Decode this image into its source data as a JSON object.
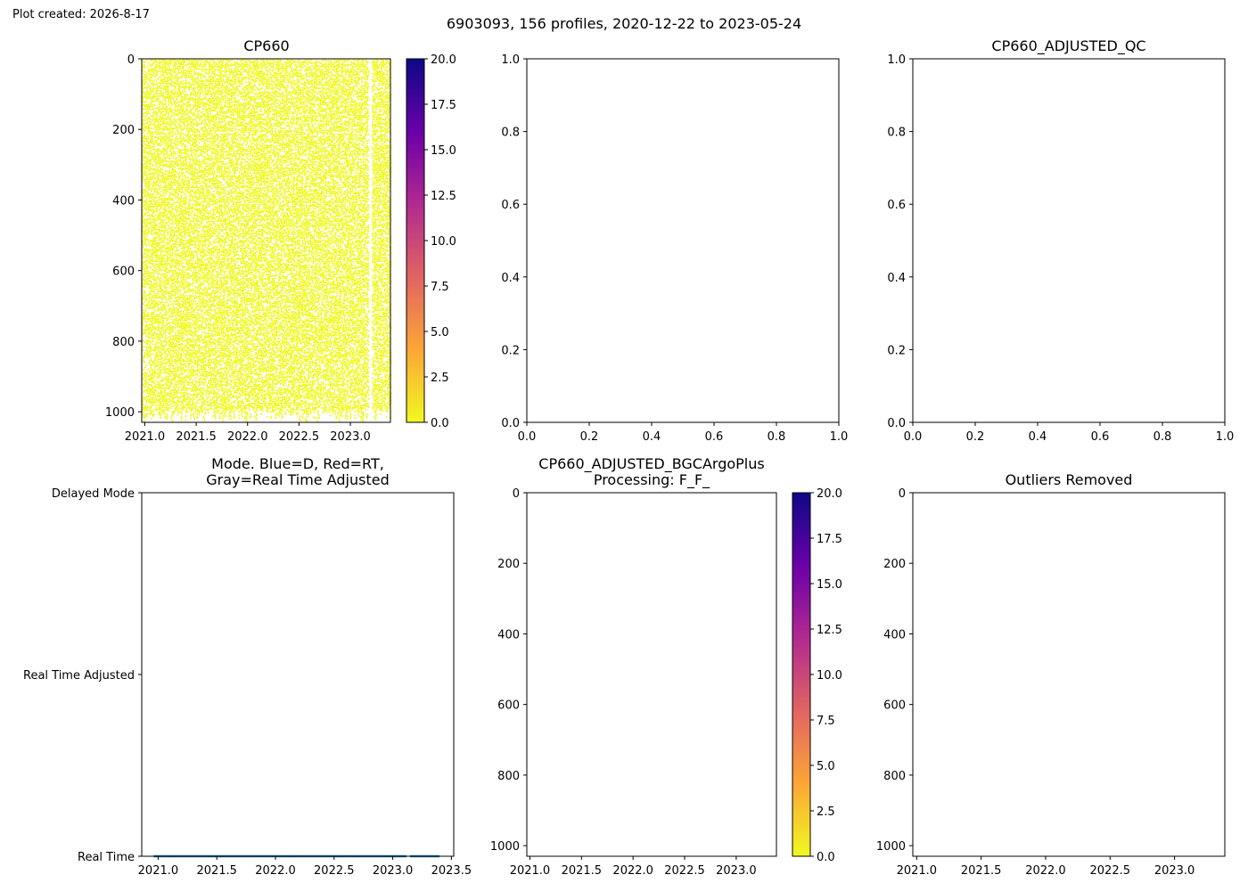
{
  "figure": {
    "created_note": "Plot created: 2026-8-17",
    "suptitle": "6903093, 156 profiles, 2020-12-22 to 2023-05-24"
  },
  "colors": {
    "plasma_r": [
      "#f0f921",
      "#fca636",
      "#e16462",
      "#b12a90",
      "#6a00a8",
      "#0d0887"
    ],
    "scatter_fill": "#f0f921",
    "mode_points": "#1f77b4"
  },
  "chart_data": [
    {
      "id": "cp660",
      "type": "scatter",
      "title": "CP660",
      "xlim": [
        2020.97,
        2023.39
      ],
      "ylim": [
        1030,
        0
      ],
      "xticks": [
        2021.0,
        2021.5,
        2022.0,
        2022.5,
        2023.0
      ],
      "xtick_labels": [
        "2021.0",
        "2021.5",
        "2022.0",
        "2022.5",
        "2023.0"
      ],
      "yticks": [
        0,
        200,
        400,
        600,
        800,
        1000
      ],
      "ytick_labels": [
        "0",
        "200",
        "400",
        "600",
        "800",
        "1000"
      ],
      "profiles": {
        "count": 156,
        "date_range": [
          "2020-12-22",
          "2023-05-24"
        ],
        "depth_range": [
          0,
          1030
        ],
        "value_range": [
          0,
          1
        ],
        "gap": [
          2023.17,
          2023.21
        ]
      },
      "colorbar": {
        "cmap": "plasma_r",
        "range": [
          0,
          20
        ],
        "ticks": [
          0,
          2.5,
          5,
          7.5,
          10,
          12.5,
          15,
          17.5,
          20
        ],
        "tick_labels": [
          "0.0",
          "2.5",
          "5.0",
          "7.5",
          "10.0",
          "12.5",
          "15.0",
          "17.5",
          "20.0"
        ]
      }
    },
    {
      "id": "empty",
      "type": "scatter",
      "title": "",
      "xlim": [
        0,
        1
      ],
      "ylim": [
        0,
        1
      ],
      "xticks": [
        0,
        0.2,
        0.4,
        0.6,
        0.8,
        1.0
      ],
      "xtick_labels": [
        "0.0",
        "0.2",
        "0.4",
        "0.6",
        "0.8",
        "1.0"
      ],
      "yticks": [
        0,
        0.2,
        0.4,
        0.6,
        0.8,
        1.0
      ],
      "ytick_labels": [
        "0.0",
        "0.2",
        "0.4",
        "0.6",
        "0.8",
        "1.0"
      ]
    },
    {
      "id": "adjusted-qc",
      "type": "scatter",
      "title": "CP660_ADJUSTED_QC",
      "xlim": [
        0,
        1
      ],
      "ylim": [
        0,
        1
      ],
      "xticks": [
        0,
        0.2,
        0.4,
        0.6,
        0.8,
        1.0
      ],
      "xtick_labels": [
        "0.0",
        "0.2",
        "0.4",
        "0.6",
        "0.8",
        "1.0"
      ],
      "yticks": [
        0,
        0.2,
        0.4,
        0.6,
        0.8,
        1.0
      ],
      "ytick_labels": [
        "0.0",
        "0.2",
        "0.4",
        "0.6",
        "0.8",
        "1.0"
      ]
    },
    {
      "id": "mode",
      "type": "scatter",
      "title": [
        "Mode. Blue=D, Red=RT,",
        "Gray=Real Time Adjusted"
      ],
      "xlim": [
        2020.86,
        2023.52
      ],
      "ylim": [
        0,
        2
      ],
      "xticks": [
        2021.0,
        2021.5,
        2022.0,
        2022.5,
        2023.0,
        2023.5
      ],
      "xtick_labels": [
        "2021.0",
        "2021.5",
        "2022.0",
        "2022.5",
        "2023.0",
        "2023.5"
      ],
      "yticks": [
        0,
        1,
        2
      ],
      "ytick_labels": [
        "Real Time",
        "Real Time Adjusted",
        "Delayed Mode"
      ],
      "series": [
        {
          "mode": "Real Time",
          "y": 0,
          "count": 156,
          "x_range": [
            2020.97,
            2023.39
          ],
          "gap": [
            2023.11,
            2023.15
          ]
        }
      ]
    },
    {
      "id": "bgcargoplus",
      "type": "scatter",
      "title": [
        "CP660_ADJUSTED_BGCArgoPlus",
        "Processing: F_F_"
      ],
      "xlim": [
        2020.97,
        2023.39
      ],
      "ylim": [
        1030,
        0
      ],
      "xticks": [
        2021.0,
        2021.5,
        2022.0,
        2022.5,
        2023.0
      ],
      "xtick_labels": [
        "2021.0",
        "2021.5",
        "2022.0",
        "2022.5",
        "2023.0"
      ],
      "yticks": [
        0,
        200,
        400,
        600,
        800,
        1000
      ],
      "ytick_labels": [
        "0",
        "200",
        "400",
        "600",
        "800",
        "1000"
      ],
      "colorbar": {
        "cmap": "plasma_r",
        "range": [
          0,
          20
        ],
        "ticks": [
          0,
          2.5,
          5,
          7.5,
          10,
          12.5,
          15,
          17.5,
          20
        ],
        "tick_labels": [
          "0.0",
          "2.5",
          "5.0",
          "7.5",
          "10.0",
          "12.5",
          "15.0",
          "17.5",
          "20.0"
        ]
      }
    },
    {
      "id": "outliers",
      "type": "scatter",
      "title": "Outliers Removed",
      "xlim": [
        2020.97,
        2023.39
      ],
      "ylim": [
        1030,
        0
      ],
      "xticks": [
        2021.0,
        2021.5,
        2022.0,
        2022.5,
        2023.0
      ],
      "xtick_labels": [
        "2021.0",
        "2021.5",
        "2022.0",
        "2022.5",
        "2023.0"
      ],
      "yticks": [
        0,
        200,
        400,
        600,
        800,
        1000
      ],
      "ytick_labels": [
        "0",
        "200",
        "400",
        "600",
        "800",
        "1000"
      ]
    }
  ]
}
